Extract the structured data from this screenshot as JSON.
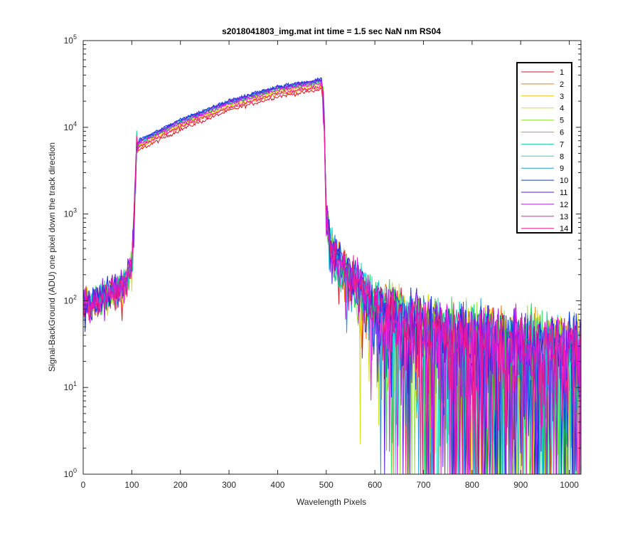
{
  "chart_data": {
    "type": "line",
    "title": "s2018041803_img.mat int time = 1.5 sec  NaN nm RS04",
    "xlabel": "Wavelength Pixels",
    "ylabel": "Signal-BackGround (ADU) one pixel down the track direction",
    "xlim": [
      0,
      1024
    ],
    "ylim": [
      1,
      100000
    ],
    "yscale": "log",
    "grid": false,
    "legend_position": "top-right",
    "x_ticks": [
      {
        "value": 0,
        "label": "0"
      },
      {
        "value": 100,
        "label": "100"
      },
      {
        "value": 200,
        "label": "200"
      },
      {
        "value": 300,
        "label": "300"
      },
      {
        "value": 400,
        "label": "400"
      },
      {
        "value": 500,
        "label": "500"
      },
      {
        "value": 600,
        "label": "600"
      },
      {
        "value": 700,
        "label": "700"
      },
      {
        "value": 800,
        "label": "800"
      },
      {
        "value": 900,
        "label": "900"
      },
      {
        "value": 1000,
        "label": "1000"
      }
    ],
    "y_ticks": [
      {
        "value": 1,
        "base": "10",
        "exp": "0"
      },
      {
        "value": 10,
        "base": "10",
        "exp": "1"
      },
      {
        "value": 100,
        "base": "10",
        "exp": "2"
      },
      {
        "value": 1000,
        "base": "10",
        "exp": "3"
      },
      {
        "value": 10000,
        "base": "10",
        "exp": "4"
      },
      {
        "value": 100000,
        "base": "10",
        "exp": "5"
      }
    ],
    "profile_x": [
      0,
      20,
      50,
      80,
      100,
      105,
      110,
      115,
      200,
      300,
      400,
      480,
      490,
      495,
      500,
      510,
      550,
      600,
      700,
      800,
      900,
      1024
    ],
    "series": [
      {
        "name": "1",
        "color": "#d1162a",
        "scale": 0.78,
        "noise": 0.06
      },
      {
        "name": "2",
        "color": "#f07a15",
        "scale": 0.83,
        "noise": 0.07
      },
      {
        "name": "3",
        "color": "#f2c60a",
        "scale": 0.87,
        "noise": 0.07
      },
      {
        "name": "4",
        "color": "#d6e020",
        "scale": 0.9,
        "noise": 0.07
      },
      {
        "name": "5",
        "color": "#8fe63a",
        "scale": 0.93,
        "noise": 0.08
      },
      {
        "name": "6",
        "color": "#2fe05c",
        "scale": 0.95,
        "noise": 0.08
      },
      {
        "name": "7",
        "color": "#19d69a",
        "scale": 0.97,
        "noise": 0.08
      },
      {
        "name": "8",
        "color": "#23d6d6",
        "scale": 0.99,
        "noise": 0.08
      },
      {
        "name": "9",
        "color": "#1c9cdc",
        "scale": 1.0,
        "noise": 0.08
      },
      {
        "name": "10",
        "color": "#1230e0",
        "scale": 1.02,
        "noise": 0.08
      },
      {
        "name": "11",
        "color": "#5a1ae0",
        "scale": 1.0,
        "noise": 0.08
      },
      {
        "name": "12",
        "color": "#a21ee0",
        "scale": 0.97,
        "noise": 0.07
      },
      {
        "name": "13",
        "color": "#e01ad6",
        "scale": 0.92,
        "noise": 0.07
      },
      {
        "name": "14",
        "color": "#f01a8a",
        "scale": 0.85,
        "noise": 0.07
      }
    ],
    "profile_y": [
      90,
      100,
      115,
      140,
      260,
      1000,
      6000,
      7000,
      12000,
      20000,
      29000,
      34000,
      36000,
      20000,
      1000,
      400,
      180,
      90,
      45,
      32,
      28,
      25
    ]
  }
}
